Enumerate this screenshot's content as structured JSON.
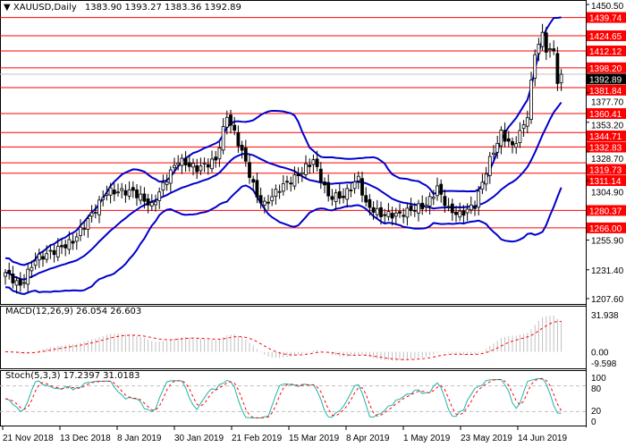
{
  "header": {
    "symbol": "XAUUSD,Daily",
    "ohlc": "1383.90 1393.27 1383.36 1392.89"
  },
  "colors": {
    "level": "#ff0000",
    "bands": "#0000cc",
    "stoch_main": "#20b2aa",
    "stoch_signal": "#ff0000",
    "macd_hist": "#c0c0c0"
  },
  "chart_data": {
    "type": "candlestick",
    "symbol": "XAUUSD",
    "timeframe": "Daily",
    "ylim": [
      1207.6,
      1450.5
    ],
    "y_ticks": [
      "1450.50",
      "1377.70",
      "1353.20",
      "1328.70",
      "1304.90",
      "1255.90",
      "1231.40",
      "1207.60"
    ],
    "x_ticks": [
      "21 Nov 2018",
      "13 Dec 2018",
      "8 Jan 2019",
      "30 Jan 2019",
      "21 Feb 2019",
      "15 Mar 2019",
      "8 Apr 2019",
      "1 May 2019",
      "23 May 2019",
      "14 Jun 2019"
    ],
    "levels": [
      "1439.74",
      "1424.65",
      "1412.12",
      "1398.20",
      "1381.84",
      "1360.41",
      "1344.71",
      "1332.83",
      "1319.73",
      "1311.14",
      "1280.37",
      "1266.00"
    ],
    "current_price": "1392.89",
    "close_anchors": [
      [
        0,
        1229
      ],
      [
        4,
        1218
      ],
      [
        8,
        1240
      ],
      [
        13,
        1247
      ],
      [
        18,
        1255
      ],
      [
        23,
        1277
      ],
      [
        27,
        1296
      ],
      [
        34,
        1296
      ],
      [
        39,
        1284
      ],
      [
        43,
        1307
      ],
      [
        46,
        1322
      ],
      [
        51,
        1315
      ],
      [
        56,
        1322
      ],
      [
        59,
        1359
      ],
      [
        63,
        1329
      ],
      [
        67,
        1292
      ],
      [
        69,
        1285
      ],
      [
        73,
        1299
      ],
      [
        77,
        1307
      ],
      [
        82,
        1322
      ],
      [
        86,
        1292
      ],
      [
        90,
        1292
      ],
      [
        94,
        1307
      ],
      [
        96,
        1285
      ],
      [
        100,
        1277
      ],
      [
        105,
        1277
      ],
      [
        108,
        1281
      ],
      [
        112,
        1285
      ],
      [
        115,
        1299
      ],
      [
        118,
        1281
      ],
      [
        121,
        1277
      ],
      [
        125,
        1285
      ],
      [
        129,
        1322
      ],
      [
        132,
        1344
      ],
      [
        135,
        1333
      ],
      [
        137,
        1344
      ],
      [
        139,
        1359
      ],
      [
        141,
        1411
      ],
      [
        143,
        1425
      ],
      [
        144,
        1414
      ],
      [
        146,
        1411
      ],
      [
        147,
        1388
      ],
      [
        148,
        1393
      ]
    ],
    "bollinger": {
      "period": 20,
      "deviation": 2
    },
    "macd": {
      "label": "MACD(12,26,9) 26.054 26.603",
      "ticks": [
        "31.938",
        "0.00",
        "-9.598"
      ]
    },
    "stoch": {
      "label": "Stoch(5,3,3) 17.2397 31.0183",
      "ticks": [
        "100",
        "80",
        "20",
        "0"
      ]
    }
  }
}
